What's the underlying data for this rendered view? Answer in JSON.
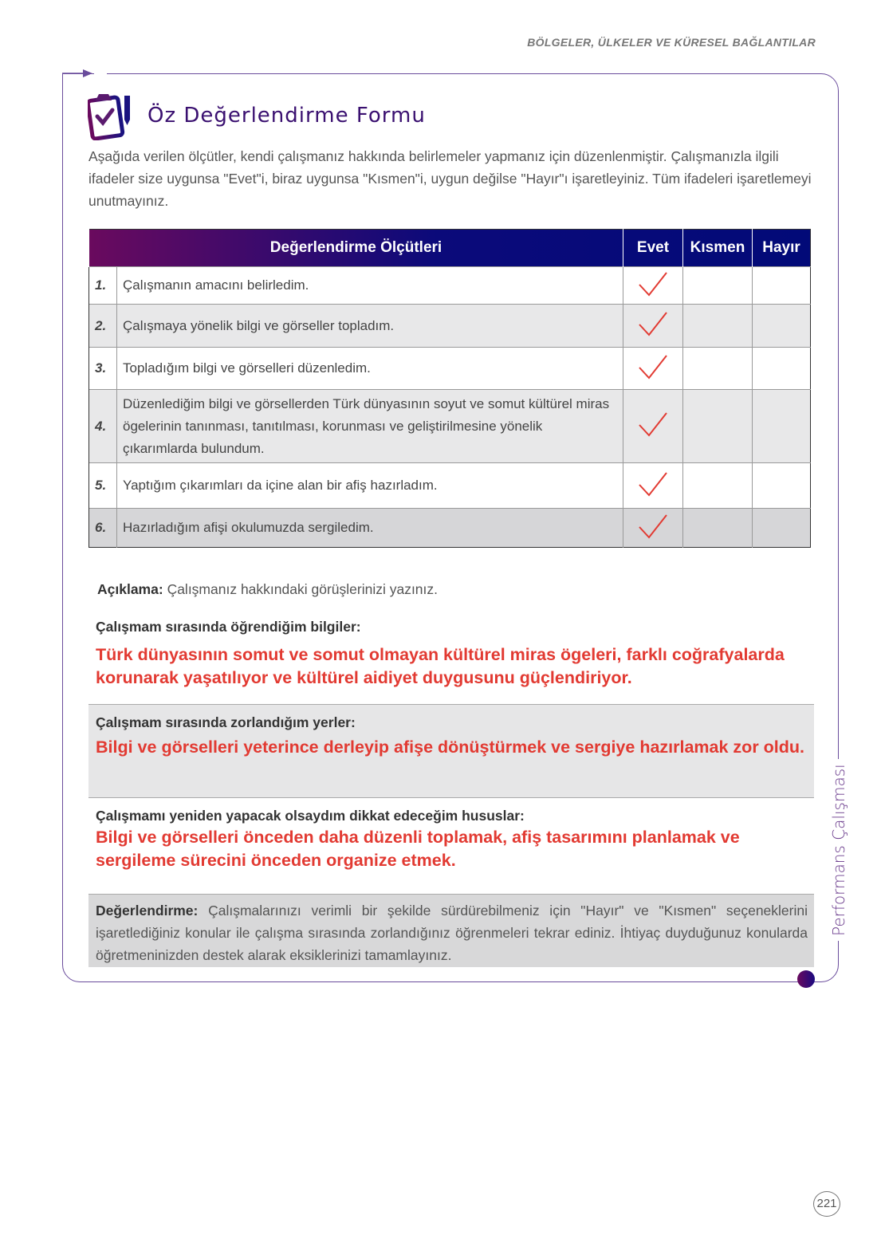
{
  "header": {
    "running_title": "BÖLGELER, ÜLKELER VE KÜRESEL BAĞLANTILAR"
  },
  "form": {
    "title": "Öz Değerlendirme Formu",
    "intro": "Aşağıda verilen ölçütler, kendi çalışmanız hakkında belirlemeler yapmanız için düzenlenmiştir. Çalışmanızla ilgili ifadeler size uygunsa \"Evet\"i, biraz uygunsa \"Kısmen\"i, uygun değilse \"Hayır\"ı işaretleyiniz. Tüm ifadeleri işaretlemeyi unutmayınız."
  },
  "table": {
    "headers": [
      "Değerlendirme Ölçütleri",
      "Evet",
      "Kısmen",
      "Hayır"
    ],
    "rows": [
      {
        "num": "1.",
        "text": "Çalışmanın amacını belirledim.",
        "answer": "Evet"
      },
      {
        "num": "2.",
        "text": "Çalışmaya yönelik bilgi ve görseller topladım.",
        "answer": "Evet"
      },
      {
        "num": "3.",
        "text": "Topladığım bilgi ve görselleri düzenledim.",
        "answer": "Evet"
      },
      {
        "num": "4.",
        "text": "Düzenlediğim bilgi ve görsellerden Türk dünyasının soyut ve somut kültürel miras ögelerinin tanınması, tanıtılması, korunması ve geliştirilmesine yönelik çıkarımlarda bulundum.",
        "answer": "Evet"
      },
      {
        "num": "5.",
        "text": "Yaptığım çıkarımları da içine alan bir afiş hazırladım.",
        "answer": "Evet"
      },
      {
        "num": "6.",
        "text": "Hazırladığım afişi okulumuzda sergiledim.",
        "answer": "Evet"
      }
    ]
  },
  "aciklama": {
    "label": "Açıklama:",
    "text": "Çalışmanız hakkındaki görüşlerinizi yazınız."
  },
  "sections": [
    {
      "label": "Çalışmam sırasında öğrendiğim bilgiler:",
      "answer": "Türk dünyasının somut ve somut olmayan kültürel miras ögeleri, farklı coğrafyalarda korunarak yaşatılıyor ve kültürel aidiyet duygusunu güçlendiriyor."
    },
    {
      "label": "Çalışmam sırasında zorlandığım yerler:",
      "answer": "Bilgi ve görselleri yeterince derleyip afişe dönüştürmek ve sergiye hazırlamak zor oldu."
    },
    {
      "label": "Çalışmamı yeniden yapacak olsaydım dikkat edeceğim hususlar:",
      "answer": "Bilgi ve görselleri önceden daha düzenli toplamak, afiş tasarımını planlamak ve sergileme sürecini önceden organize etmek."
    }
  ],
  "degerlendirme": {
    "label": "Değerlendirme:",
    "text": "Çalışmalarınızı verimli bir şekilde sürdürebilmeniz için \"Hayır\" ve \"Kısmen\" seçeneklerini işaretlediğiniz konular ile çalışma sırasında zorlandığınız öğrenmeleri tekrar ediniz. İhtiyaç duyduğunuz konularda öğretmeninizden destek alarak eksiklerinizi tamamlayınız."
  },
  "side_label": "Performans Çalışması",
  "page_number": "221",
  "colors": {
    "header_start": "#6a0a5e",
    "header_end": "#0b0a7a",
    "check": "#e23a32",
    "answer": "#e23a32",
    "frame": "#6a4c9c"
  }
}
